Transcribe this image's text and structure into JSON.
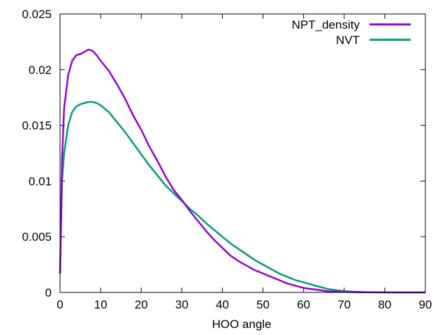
{
  "chart_data": {
    "type": "line",
    "title": "",
    "xlabel": "HOO angle",
    "ylabel": "",
    "xlim": [
      0,
      90
    ],
    "ylim": [
      0,
      0.025
    ],
    "xticks": [
      0,
      10,
      20,
      30,
      40,
      50,
      60,
      70,
      80,
      90
    ],
    "xtick_labels": [
      "0",
      "10",
      "20",
      "30",
      "40",
      "50",
      "60",
      "70",
      "80",
      "90"
    ],
    "yticks": [
      0,
      0.005,
      0.01,
      0.015,
      0.02,
      0.025
    ],
    "ytick_labels": [
      "0",
      "0.005",
      "0.01",
      "0.015",
      "0.02",
      "0.025"
    ],
    "grid": false,
    "legend_position": "top-right",
    "series": [
      {
        "name": "NPT_density",
        "color": "#9400d3",
        "x": [
          0,
          0.5,
          1,
          2,
          3,
          4,
          5,
          6,
          7,
          8,
          9,
          10,
          12,
          14,
          16,
          18,
          20,
          22,
          24,
          26,
          28,
          30,
          32,
          34,
          36,
          38,
          40,
          42,
          44,
          46,
          48,
          50,
          52,
          54,
          56,
          58,
          60,
          62,
          64,
          66,
          68,
          70,
          72,
          74,
          76,
          78,
          80,
          85,
          90
        ],
        "y": [
          0.0017,
          0.012,
          0.0165,
          0.0195,
          0.0208,
          0.0213,
          0.0214,
          0.0216,
          0.0218,
          0.0217,
          0.0213,
          0.0208,
          0.0199,
          0.0187,
          0.0174,
          0.0159,
          0.0146,
          0.0131,
          0.0118,
          0.0104,
          0.0092,
          0.0083,
          0.0073,
          0.0064,
          0.0055,
          0.0047,
          0.004,
          0.0033,
          0.0028,
          0.0024,
          0.002,
          0.0017,
          0.0014,
          0.0011,
          0.0008,
          0.0006,
          0.0004,
          0.0003,
          0.0002,
          0.0001,
          7e-05,
          5e-05,
          3e-05,
          2e-05,
          1e-05,
          5e-06,
          0,
          0,
          0
        ]
      },
      {
        "name": "NVT",
        "color": "#009e73",
        "x": [
          0,
          0.5,
          1,
          2,
          3,
          4,
          5,
          6,
          7,
          8,
          9,
          10,
          12,
          14,
          16,
          18,
          20,
          22,
          24,
          26,
          28,
          30,
          32,
          34,
          36,
          38,
          40,
          42,
          44,
          46,
          48,
          50,
          52,
          54,
          56,
          58,
          60,
          62,
          64,
          66,
          68,
          70,
          72,
          74,
          76,
          78,
          80,
          85,
          90
        ],
        "y": [
          0.0017,
          0.01,
          0.0125,
          0.015,
          0.0162,
          0.0167,
          0.0169,
          0.017,
          0.0171,
          0.0171,
          0.017,
          0.0168,
          0.0162,
          0.0153,
          0.0144,
          0.0134,
          0.0124,
          0.0114,
          0.0105,
          0.0096,
          0.0089,
          0.0082,
          0.0075,
          0.0069,
          0.0062,
          0.0056,
          0.005,
          0.0044,
          0.0039,
          0.0034,
          0.0029,
          0.0025,
          0.0021,
          0.0017,
          0.0014,
          0.0011,
          0.0009,
          0.0007,
          0.0005,
          0.0003,
          0.0002,
          0.00012,
          7e-05,
          4e-05,
          2e-05,
          1e-05,
          5e-06,
          0,
          0
        ]
      }
    ]
  }
}
